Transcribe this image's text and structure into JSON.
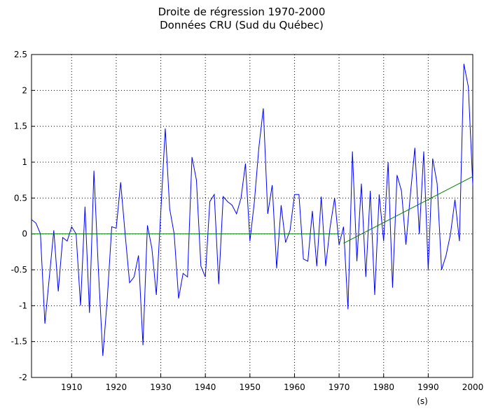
{
  "chart_data": {
    "type": "line",
    "title": [
      "Droite de régression 1970-2000",
      "Données CRU (Sud du Québec)"
    ],
    "x_label": "(s)",
    "xlim": [
      1901,
      2000
    ],
    "ylim": [
      -2,
      2.5
    ],
    "xticks": [
      1910,
      1920,
      1930,
      1940,
      1950,
      1960,
      1970,
      1980,
      1990,
      2000
    ],
    "yticks": [
      -2,
      -1.5,
      -1,
      -0.5,
      0,
      0.5,
      1,
      1.5,
      2,
      2.5
    ],
    "grid": true,
    "series": [
      {
        "color": "#0000ff",
        "x": [
          1901,
          1902,
          1903,
          1904,
          1905,
          1906,
          1907,
          1908,
          1909,
          1910,
          1911,
          1912,
          1913,
          1914,
          1915,
          1916,
          1917,
          1918,
          1919,
          1920,
          1921,
          1922,
          1923,
          1924,
          1925,
          1926,
          1927,
          1928,
          1929,
          1930,
          1931,
          1932,
          1933,
          1934,
          1935,
          1936,
          1937,
          1938,
          1939,
          1940,
          1941,
          1942,
          1943,
          1944,
          1945,
          1946,
          1947,
          1948,
          1949,
          1950,
          1951,
          1952,
          1953,
          1954,
          1955,
          1956,
          1957,
          1958,
          1959,
          1960,
          1961,
          1962,
          1963,
          1964,
          1965,
          1966,
          1967,
          1968,
          1969,
          1970,
          1971,
          1972,
          1973,
          1974,
          1975,
          1976,
          1977,
          1978,
          1979,
          1980,
          1981,
          1982,
          1983,
          1984,
          1985,
          1986,
          1987,
          1988,
          1989,
          1990,
          1991,
          1992,
          1993,
          1994,
          1995,
          1996,
          1997,
          1998,
          1999,
          2000
        ],
        "values": [
          0.2,
          0.15,
          0.0,
          -1.25,
          -0.6,
          0.05,
          -0.8,
          -0.05,
          -0.1,
          0.1,
          0.0,
          -1.0,
          0.38,
          -1.1,
          0.88,
          -0.5,
          -1.7,
          -0.9,
          0.1,
          0.08,
          0.72,
          0.0,
          -0.68,
          -0.6,
          -0.3,
          -1.55,
          0.12,
          -0.2,
          -0.85,
          0.3,
          1.47,
          0.35,
          0.0,
          -0.9,
          -0.55,
          -0.6,
          1.07,
          0.75,
          -0.45,
          -0.6,
          0.45,
          0.55,
          -0.7,
          0.52,
          0.45,
          0.4,
          0.28,
          0.5,
          0.98,
          -0.1,
          0.45,
          1.2,
          1.75,
          0.28,
          0.68,
          -0.48,
          0.4,
          -0.12,
          0.05,
          0.55,
          0.55,
          -0.35,
          -0.38,
          0.32,
          -0.45,
          0.52,
          -0.45,
          0.1,
          0.5,
          -0.15,
          0.1,
          -1.05,
          1.15,
          -0.38,
          0.7,
          -0.6,
          0.6,
          -0.85,
          0.55,
          -0.1,
          1.0,
          -0.75,
          0.82,
          0.6,
          -0.15,
          0.55,
          1.2,
          0.0,
          1.15,
          -0.5,
          1.05,
          0.7,
          -0.5,
          -0.3,
          0.0,
          0.48,
          -0.1,
          2.37,
          2.05,
          0.68
        ]
      },
      {
        "color": "#008000",
        "x": [
          1901,
          1970
        ],
        "values": [
          0,
          0
        ]
      },
      {
        "color": "#008000",
        "x": [
          1971,
          2000
        ],
        "values": [
          -0.13,
          0.8
        ]
      }
    ]
  }
}
